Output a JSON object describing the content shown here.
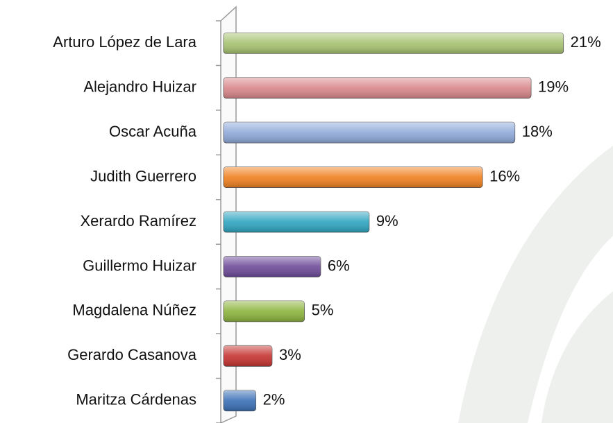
{
  "chart_data": {
    "type": "bar",
    "orientation": "horizontal",
    "categories": [
      "Arturo López de Lara",
      "Alejandro Huizar",
      "Oscar Acuña",
      "Judith Guerrero",
      "Xerardo Ramírez",
      "Guillermo Huizar",
      "Magdalena Núñez",
      "Gerardo Casanova",
      "Maritza Cárdenas"
    ],
    "values": [
      21,
      19,
      18,
      16,
      9,
      6,
      5,
      3,
      2
    ],
    "value_labels": [
      "21%",
      "19%",
      "18%",
      "16%",
      "9%",
      "6%",
      "5%",
      "3%",
      "2%"
    ],
    "colors": [
      "#a6c270",
      "#d9878a",
      "#8ea9d9",
      "#f08020",
      "#2ea4c0",
      "#6d4a99",
      "#8cb33c",
      "#c53330",
      "#3a70b6"
    ],
    "xlim": [
      0,
      22
    ]
  }
}
